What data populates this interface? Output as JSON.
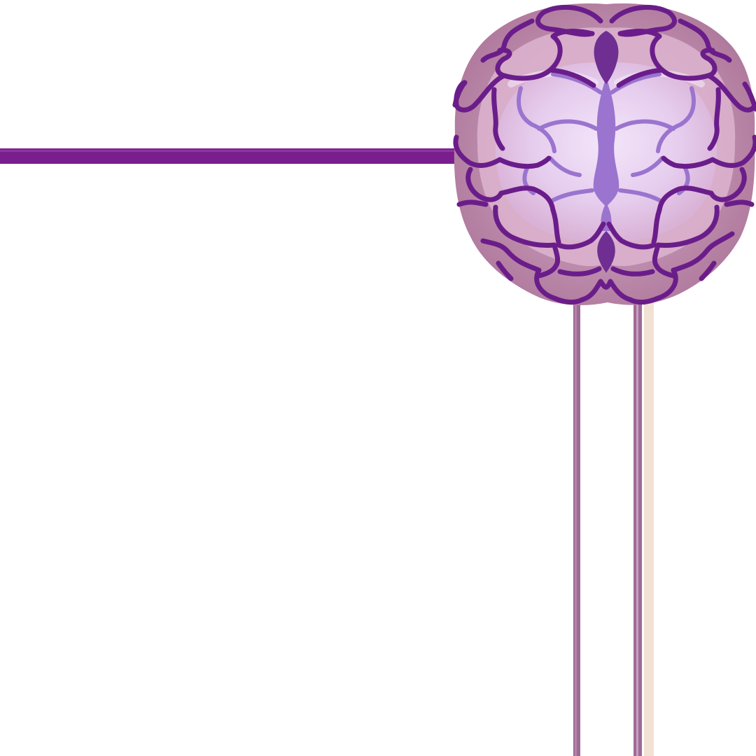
{
  "scene": {
    "subject": "brain-icon",
    "colors": {
      "background": "#ffffff",
      "bar_purple": "#7a1e8e",
      "outer_lobe": "#b783a3",
      "middle_lobe": "#dab1cd",
      "inner_lobe": "#e8cdef",
      "core_glow": "#f1e4f8",
      "outline_dark": "#6a1d8a",
      "vein_light": "#9b74cf",
      "stem_mauve": "#9c6a94",
      "stem_cream": "#f1e2d4"
    }
  }
}
